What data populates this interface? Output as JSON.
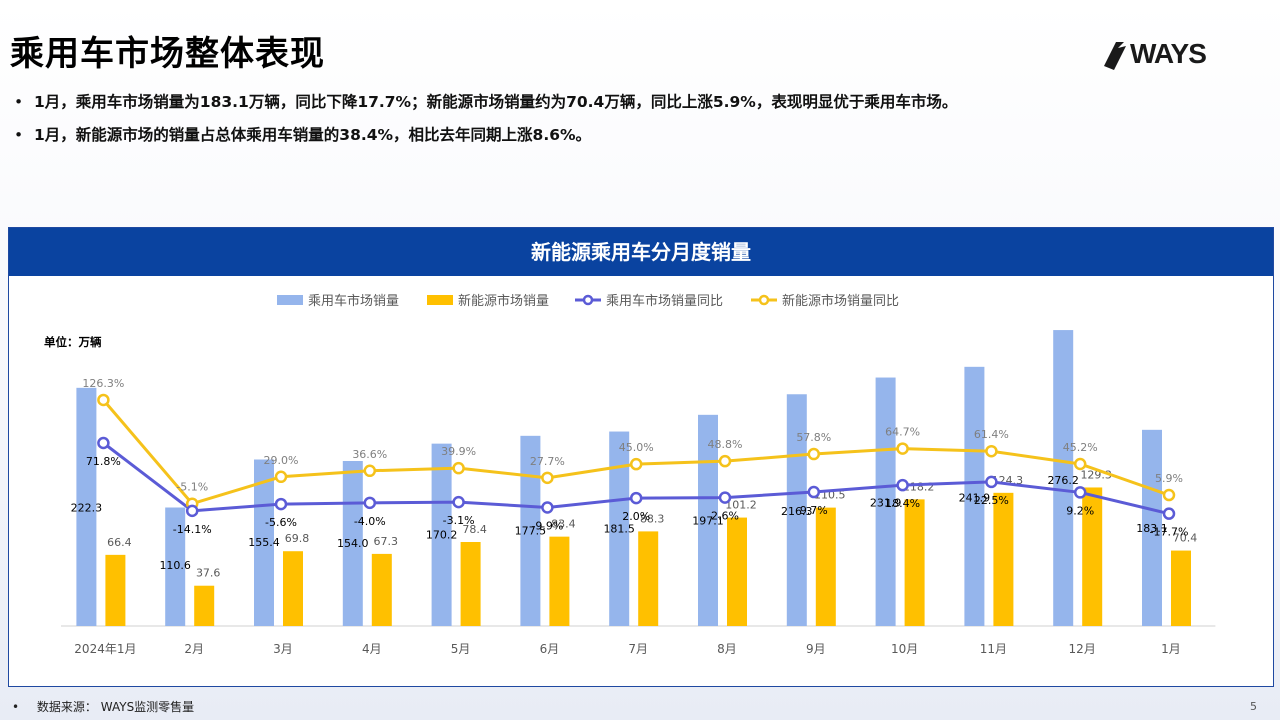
{
  "page": {
    "title": "乘用车市场整体表现",
    "logo_text": "WAYS",
    "bullets": [
      "1月，乘用车市场销量为183.1万辆，同比下降17.7%；新能源市场销量约为70.4万辆，同比上涨5.9%，表现明显优于乘用车市场。",
      "1月，新能源市场的销量占总体乘用车销量的38.4%，相比去年同期上涨8.6%。"
    ],
    "footer_label": "数据来源：",
    "footer_source": "WAYS监测零售量",
    "page_number": "5",
    "colors": {
      "header": "#0a43a0",
      "bar_total": "#95b5ec",
      "bar_nev": "#ffc000",
      "line_total": "#5b5bd6",
      "line_nev": "#f5c21b"
    }
  },
  "chart_data": {
    "type": "bar",
    "title": "新能源乘用车分月度销量",
    "unit_label": "单位：万辆",
    "legend_position": "top",
    "categories": [
      "2024年1月",
      "2月",
      "3月",
      "4月",
      "5月",
      "6月",
      "7月",
      "8月",
      "9月",
      "10月",
      "11月",
      "12月",
      "1月"
    ],
    "series": [
      {
        "name": "乘用车市场销量",
        "kind": "bar",
        "values": [
          222.3,
          110.6,
          155.4,
          154.0,
          170.2,
          177.5,
          181.5,
          197.1,
          216.3,
          231.9,
          241.9,
          276.2,
          183.1
        ],
        "labels": [
          "222.3",
          "110.6",
          "155.4",
          "154.0",
          "170.2",
          "177.5",
          "181.5",
          "197.1",
          "216.3",
          "231.9",
          "241.9",
          "276.2",
          "183.1"
        ]
      },
      {
        "name": "新能源市场销量",
        "kind": "bar",
        "values": [
          66.4,
          37.6,
          69.8,
          67.3,
          78.4,
          83.4,
          88.3,
          101.2,
          110.5,
          118.2,
          124.3,
          129.3,
          70.4
        ],
        "labels": [
          "66.4",
          "37.6",
          "69.8",
          "67.3",
          "78.4",
          "83.4",
          "88.3",
          "101.2",
          "110.5",
          "118.2",
          "124.3",
          "129.3",
          "70.4"
        ]
      },
      {
        "name": "乘用车市场销量同比",
        "kind": "line",
        "values": [
          71.8,
          -14.1,
          -5.6,
          -4.0,
          -3.1,
          -9.9,
          2.0,
          2.6,
          9.7,
          18.4,
          22.5,
          9.2,
          -17.7
        ],
        "labels": [
          "71.8%",
          "-14.1%",
          "-5.6%",
          "-4.0%",
          "-3.1%",
          "-9.9%",
          "2.0%",
          "2.6%",
          "9.7%",
          "18.4%",
          "22.5%",
          "9.2%",
          "-17.7%"
        ]
      },
      {
        "name": "新能源市场销量同比",
        "kind": "line",
        "values": [
          126.3,
          -5.1,
          29.0,
          36.6,
          39.9,
          27.7,
          45.0,
          48.8,
          57.8,
          64.7,
          61.4,
          45.2,
          5.9
        ],
        "labels": [
          "126.3%",
          "-5.1%",
          "29.0%",
          "36.6%",
          "39.9%",
          "27.7%",
          "45.0%",
          "48.8%",
          "57.8%",
          "64.7%",
          "61.4%",
          "45.2%",
          "5.9%"
        ]
      }
    ],
    "bar_axis_range": [
      0,
      280
    ],
    "line_axis_range": [
      -160,
      220
    ],
    "grid": false
  }
}
